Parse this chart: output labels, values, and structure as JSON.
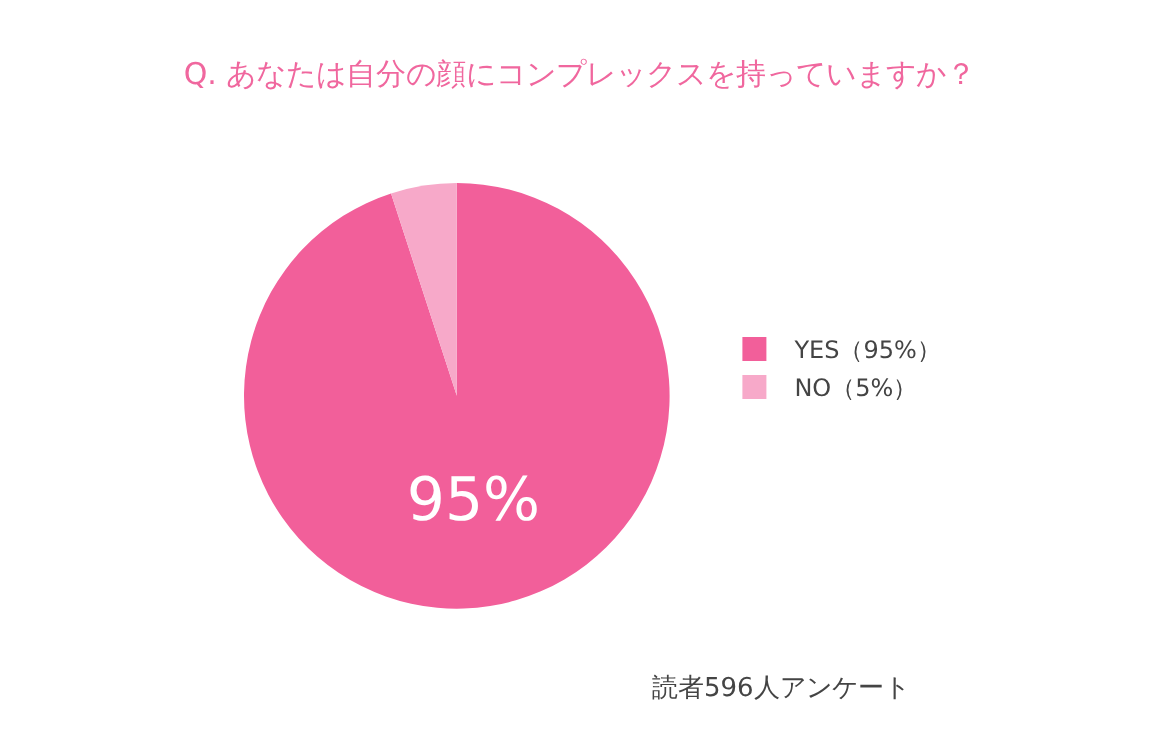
{
  "chart_data": {
    "type": "pie",
    "title": "Q. あなたは自分の顔にコンプレックスを持っていますか？",
    "categories": [
      "YES（95%）",
      "NO（5%）"
    ],
    "values": [
      95,
      5
    ],
    "colors": [
      "#f25f9a",
      "#f7a9c9"
    ],
    "value_labels": [
      "95%",
      null
    ],
    "legend": "right",
    "annotations": [
      "読者596人アンケート"
    ]
  }
}
